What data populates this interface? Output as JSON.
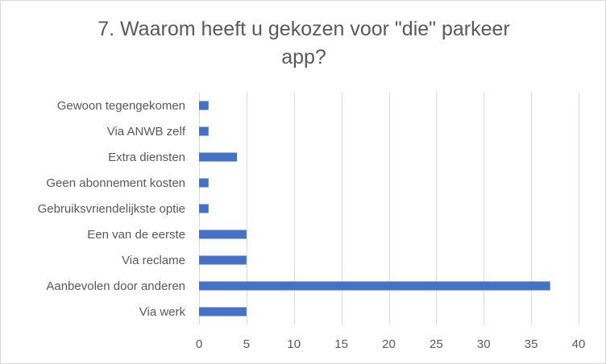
{
  "chart_data": {
    "type": "bar",
    "orientation": "horizontal",
    "title_lines": [
      "7. Waarom heeft u gekozen voor \"die\" parkeer",
      "app?"
    ],
    "categories": [
      "Gewoon tegengekomen",
      "Via ANWB zelf",
      "Extra diensten",
      "Geen abonnement kosten",
      "Gebruiksvriendelijkste optie",
      "Een van de eerste",
      "Via reclame",
      "Aanbevolen door anderen",
      "Via werk"
    ],
    "values": [
      1,
      1,
      4,
      1,
      1,
      5,
      5,
      37,
      5
    ],
    "xlim": [
      0,
      40
    ],
    "xticks": [
      0,
      5,
      10,
      15,
      20,
      25,
      30,
      35,
      40
    ],
    "bar_color": "#4472c4",
    "gridline_color": "#d9d9d9",
    "grid": true,
    "legend": false
  }
}
